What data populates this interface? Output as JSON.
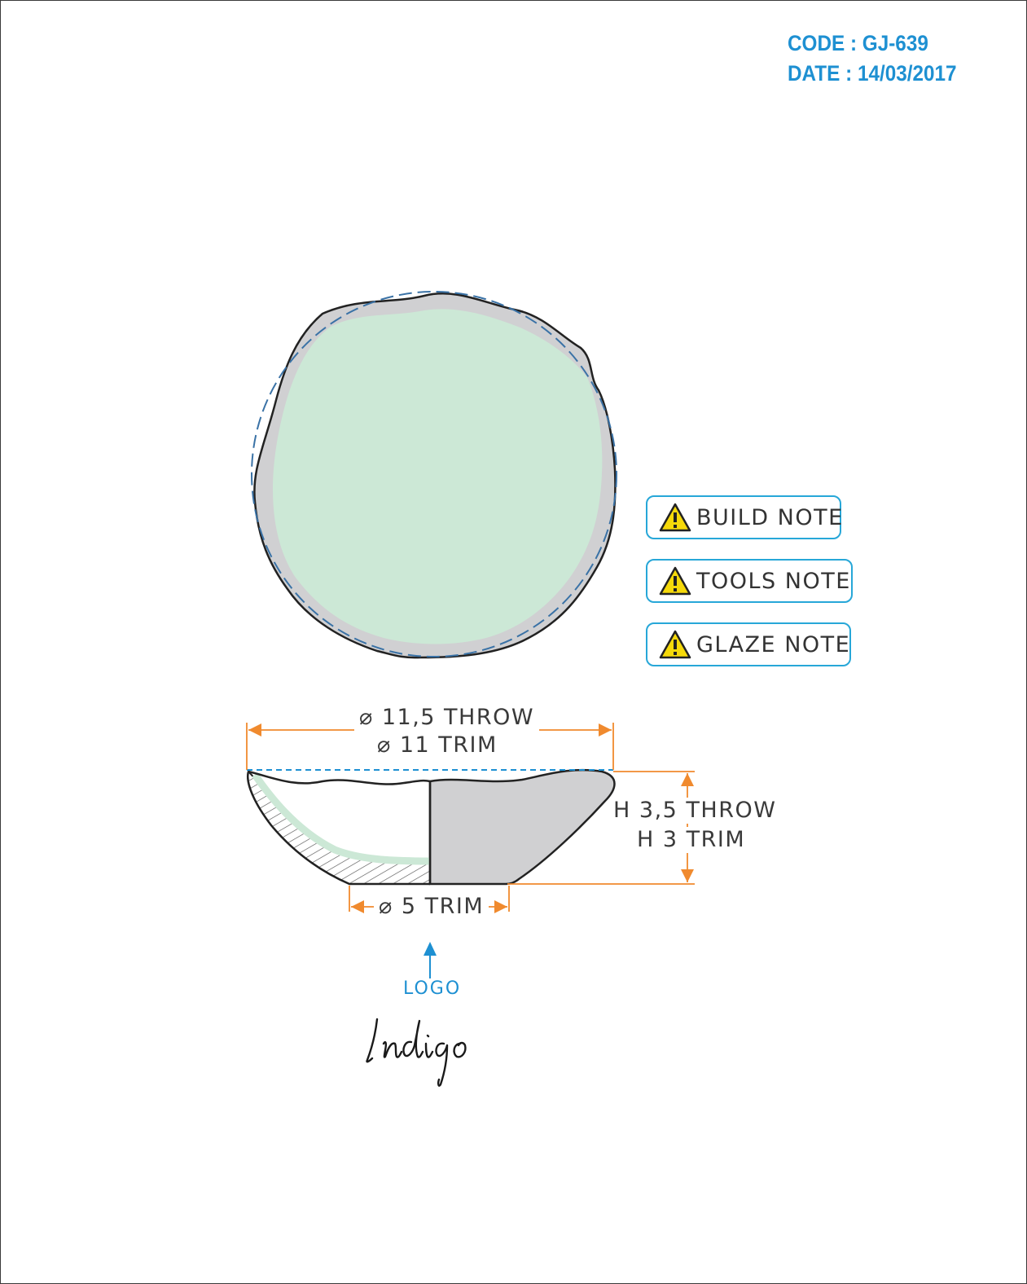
{
  "header": {
    "code": "CODE : GJ-639",
    "date": "DATE : 14/03/2017"
  },
  "notes": [
    {
      "label": "BUILD NOTE",
      "icon": "warning-icon"
    },
    {
      "label": "TOOLS NOTE",
      "icon": "warning-icon"
    },
    {
      "label": "GLAZE NOTE",
      "icon": "warning-icon"
    }
  ],
  "dimensions": {
    "diameter_throw": "⌀ 11,5 THROW",
    "diameter_trim": "⌀ 11 TRIM",
    "height_throw": "H 3,5 THROW",
    "height_trim": "H 3 TRIM",
    "foot_trim": "⌀ 5 TRIM"
  },
  "logo": {
    "label": "LOGO",
    "brand": "Indigo"
  },
  "colors": {
    "accent_blue": "#1e90d2",
    "note_border": "#27a7d8",
    "dimension_orange": "#f08a2e",
    "glaze_green": "#cce8d6",
    "body_gray": "#d0d0d2",
    "outline": "#222222",
    "warning_yellow": "#f5d90a"
  }
}
